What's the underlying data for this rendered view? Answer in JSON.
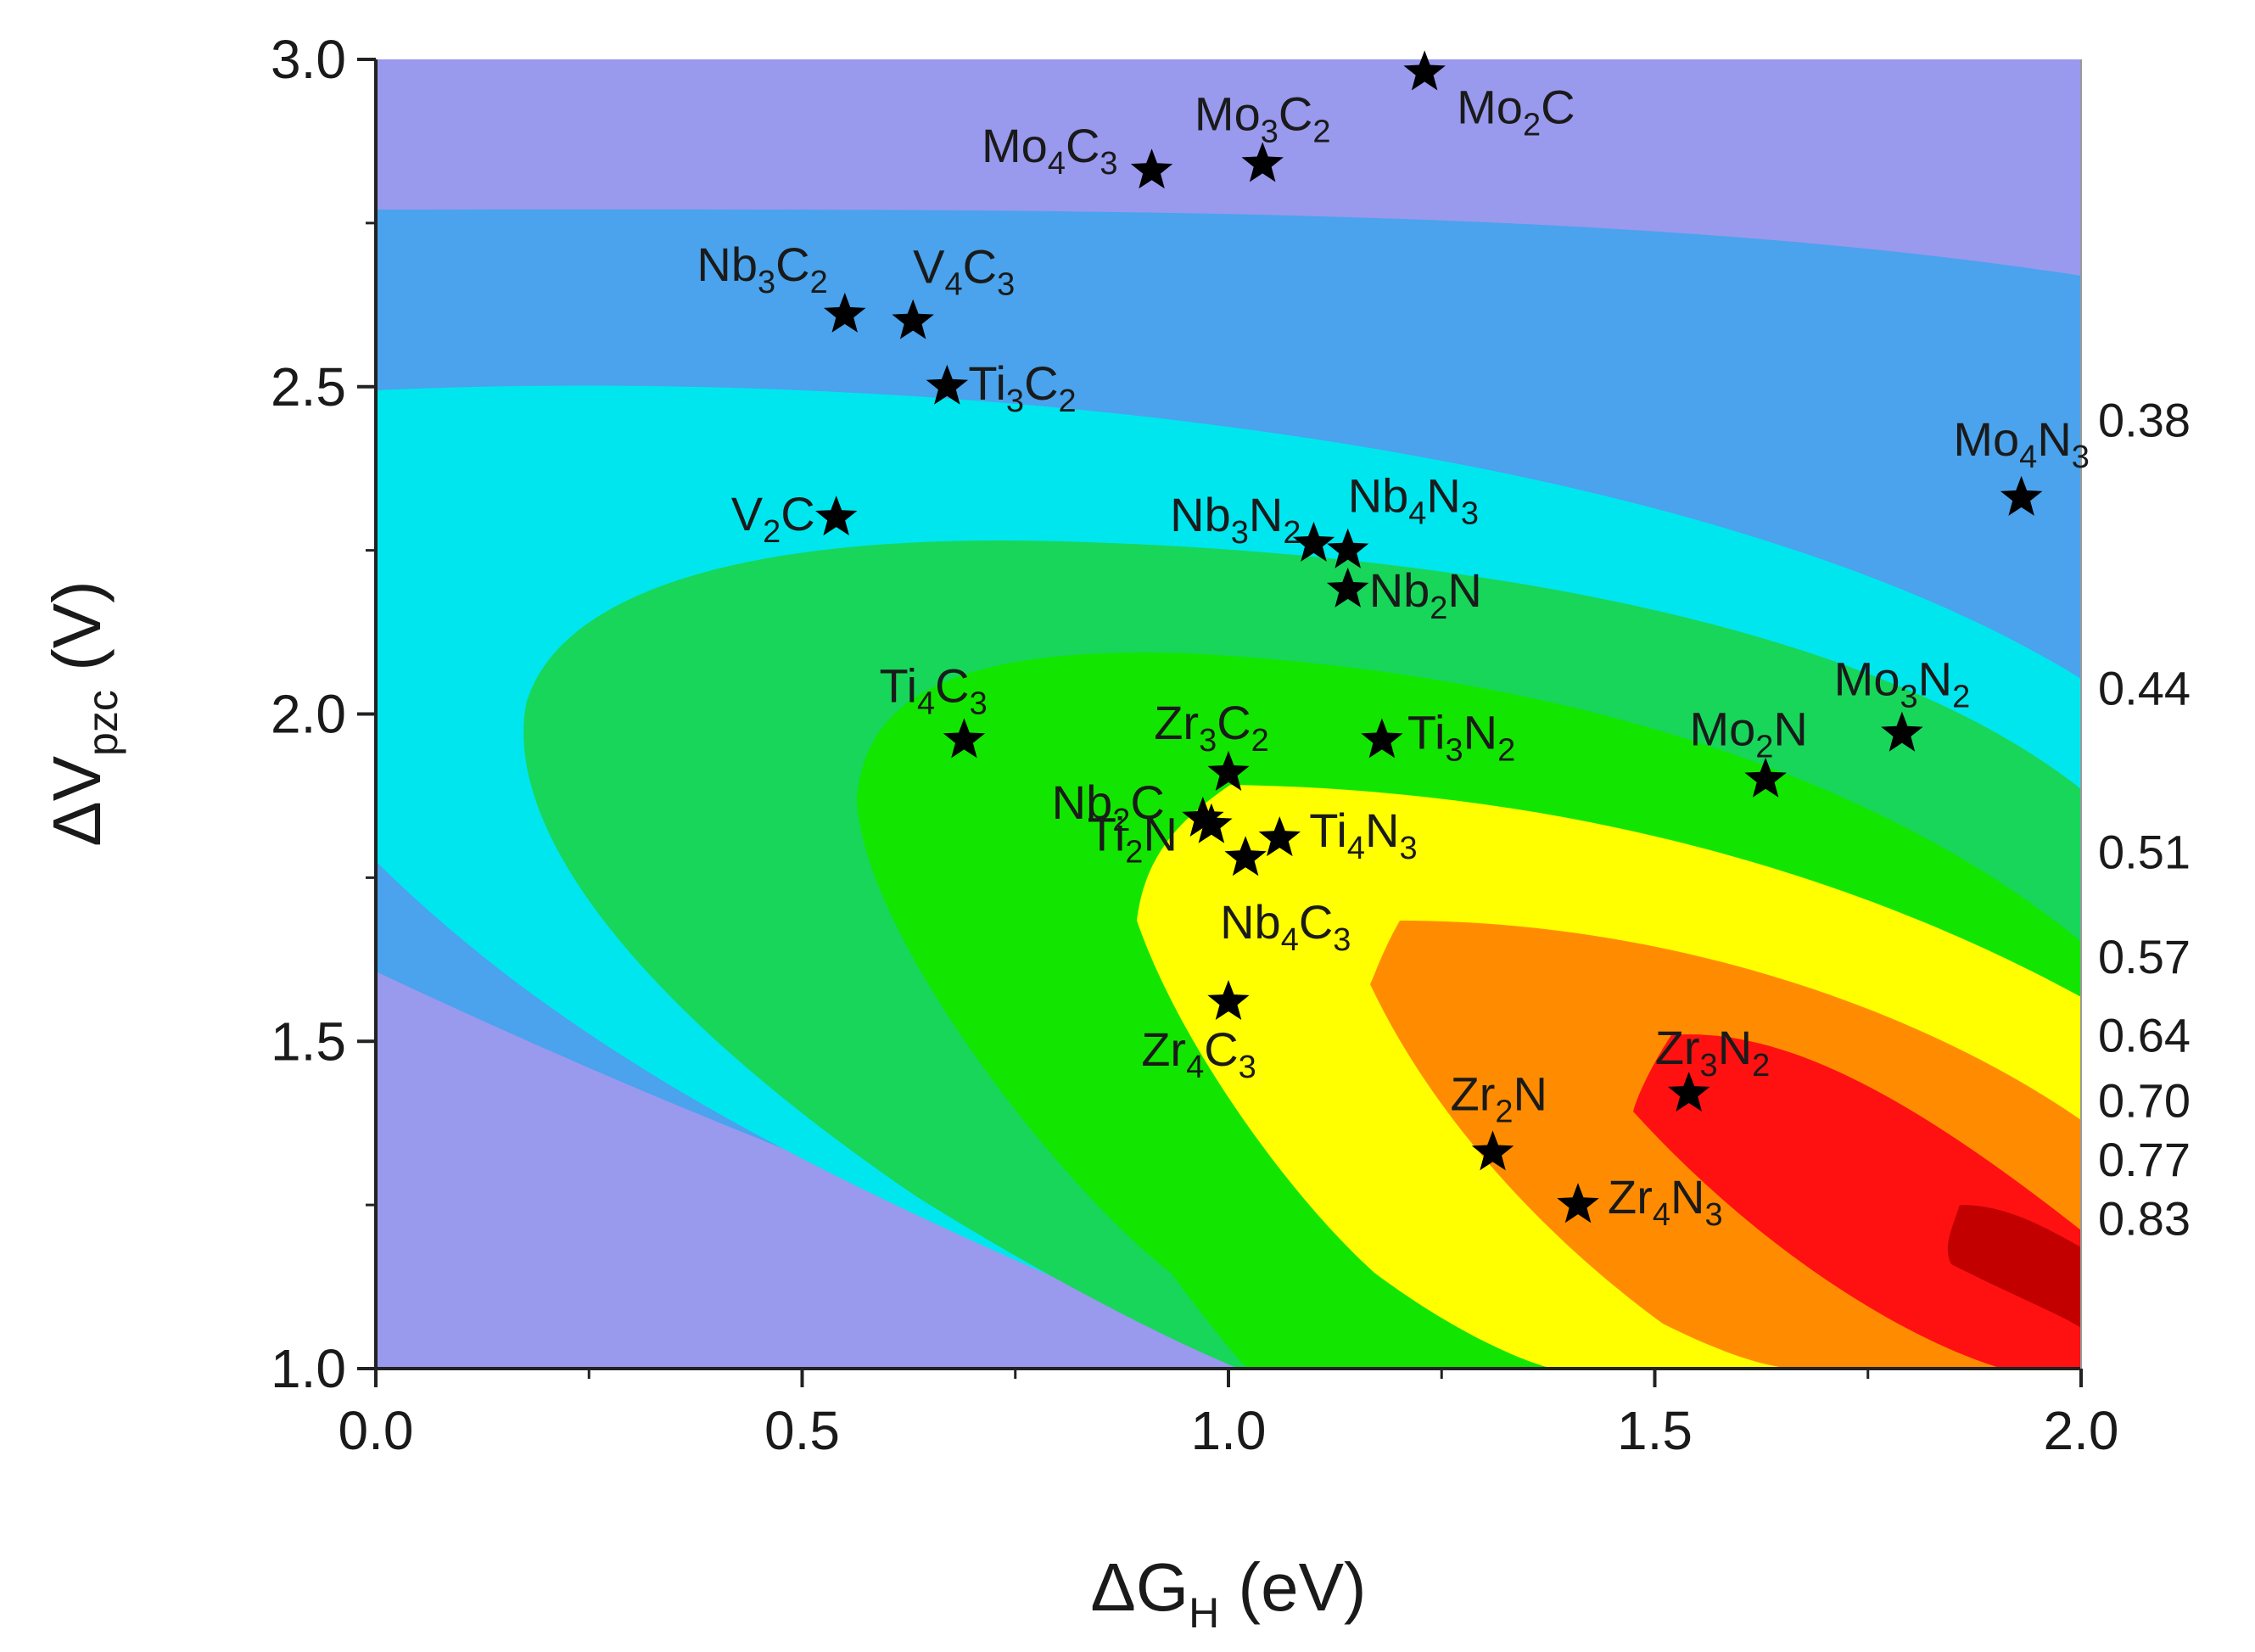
{
  "chart_data": {
    "type": "scatter",
    "subtype": "scatter over filled contour map",
    "xlabel": "ΔG",
    "xlabel_sub": "H",
    "xlabel_unit": " (eV)",
    "ylabel": "ΔV",
    "ylabel_sub": "pzc",
    "ylabel_unit": " (V)",
    "xlim": [
      0.0,
      2.0
    ],
    "ylim": [
      1.0,
      3.0
    ],
    "x_ticks": [
      "0.0",
      "0.5",
      "1.0",
      "1.5",
      "2.0"
    ],
    "y_ticks": [
      "1.0",
      "1.5",
      "2.0",
      "2.5",
      "3.0"
    ],
    "contour_levels": [
      {
        "label": "0.38",
        "y": 2.45
      },
      {
        "label": "0.44",
        "y": 2.04
      },
      {
        "label": "0.51",
        "y": 1.79
      },
      {
        "label": "0.57",
        "y": 1.63
      },
      {
        "label": "0.64",
        "y": 1.51
      },
      {
        "label": "0.70",
        "y": 1.41
      },
      {
        "label": "0.77",
        "y": 1.32
      },
      {
        "label": "0.83",
        "y": 1.23
      }
    ],
    "contour_colors": [
      "#9999ee",
      "#4aa3ec",
      "#00e6ef",
      "#17d65a",
      "#12e600",
      "#ffff00",
      "#ff8c00",
      "#ff1111",
      "#c20000"
    ],
    "points": [
      {
        "name": "Mo2C",
        "base": "Mo",
        "s1": "2",
        "mid": "C",
        "s2": "",
        "x": 1.23,
        "y": 2.98
      },
      {
        "name": "Mo3C2",
        "base": "Mo",
        "s1": "3",
        "mid": "C",
        "s2": "2",
        "x": 1.04,
        "y": 2.84
      },
      {
        "name": "Mo4C3",
        "base": "Mo",
        "s1": "4",
        "mid": "C",
        "s2": "3",
        "x": 0.91,
        "y": 2.83
      },
      {
        "name": "Nb3C2",
        "base": "Nb",
        "s1": "3",
        "mid": "C",
        "s2": "2",
        "x": 0.55,
        "y": 2.61
      },
      {
        "name": "V4C3",
        "base": "V",
        "s1": "4",
        "mid": "C",
        "s2": "3",
        "x": 0.63,
        "y": 2.6
      },
      {
        "name": "Ti3C2",
        "base": "Ti",
        "s1": "3",
        "mid": "C",
        "s2": "2",
        "x": 0.67,
        "y": 2.5
      },
      {
        "name": "Mo4N3",
        "base": "Mo",
        "s1": "4",
        "mid": "N",
        "s2": "3",
        "x": 1.93,
        "y": 2.33
      },
      {
        "name": "V2C",
        "base": "V",
        "s1": "2",
        "mid": "C",
        "s2": "",
        "x": 0.54,
        "y": 2.3
      },
      {
        "name": "Nb3N2",
        "base": "Nb",
        "s1": "3",
        "mid": "N",
        "s2": "2",
        "x": 1.1,
        "y": 2.26
      },
      {
        "name": "Nb4N3",
        "base": "Nb",
        "s1": "4",
        "mid": "N",
        "s2": "3",
        "x": 1.14,
        "y": 2.25
      },
      {
        "name": "Nb2N",
        "base": "Nb",
        "s1": "2",
        "mid": "N",
        "s2": "",
        "x": 1.14,
        "y": 2.19
      },
      {
        "name": "Ti4C3",
        "base": "Ti",
        "s1": "4",
        "mid": "C",
        "s2": "3",
        "x": 0.69,
        "y": 1.96
      },
      {
        "name": "Ti3N2",
        "base": "Ti",
        "s1": "3",
        "mid": "N",
        "s2": "2",
        "x": 1.18,
        "y": 1.96
      },
      {
        "name": "Mo3N2",
        "base": "Mo",
        "s1": "3",
        "mid": "N",
        "s2": "2",
        "x": 1.79,
        "y": 1.97
      },
      {
        "name": "Zr3C2",
        "base": "Zr",
        "s1": "3",
        "mid": "C",
        "s2": "2",
        "x": 1.0,
        "y": 1.91
      },
      {
        "name": "Mo2N",
        "base": "Mo",
        "s1": "2",
        "mid": "N",
        "s2": "",
        "x": 1.63,
        "y": 1.9
      },
      {
        "name": "Nb2C",
        "base": "Nb",
        "s1": "2",
        "mid": "C",
        "s2": "",
        "x": 0.97,
        "y": 1.84
      },
      {
        "name": "Ti2N",
        "base": "Ti",
        "s1": "2",
        "mid": "N",
        "s2": "",
        "x": 0.98,
        "y": 1.83
      },
      {
        "name": "Ti4N3",
        "base": "Ti",
        "s1": "4",
        "mid": "N",
        "s2": "3",
        "x": 1.06,
        "y": 1.81
      },
      {
        "name": "Nb4C3",
        "base": "Nb",
        "s1": "4",
        "mid": "C",
        "s2": "3",
        "x": 1.02,
        "y": 1.78
      },
      {
        "name": "Zr4C3",
        "base": "Zr",
        "s1": "4",
        "mid": "C",
        "s2": "3",
        "x": 1.0,
        "y": 1.56
      },
      {
        "name": "Zr3N2",
        "base": "Zr",
        "s1": "3",
        "mid": "N",
        "s2": "2",
        "x": 1.54,
        "y": 1.42
      },
      {
        "name": "Zr2N",
        "base": "Zr",
        "s1": "2",
        "mid": "N",
        "s2": "",
        "x": 1.31,
        "y": 1.33
      },
      {
        "name": "Zr4N3",
        "base": "Zr",
        "s1": "4",
        "mid": "N",
        "s2": "3",
        "x": 1.41,
        "y": 1.25
      }
    ]
  }
}
